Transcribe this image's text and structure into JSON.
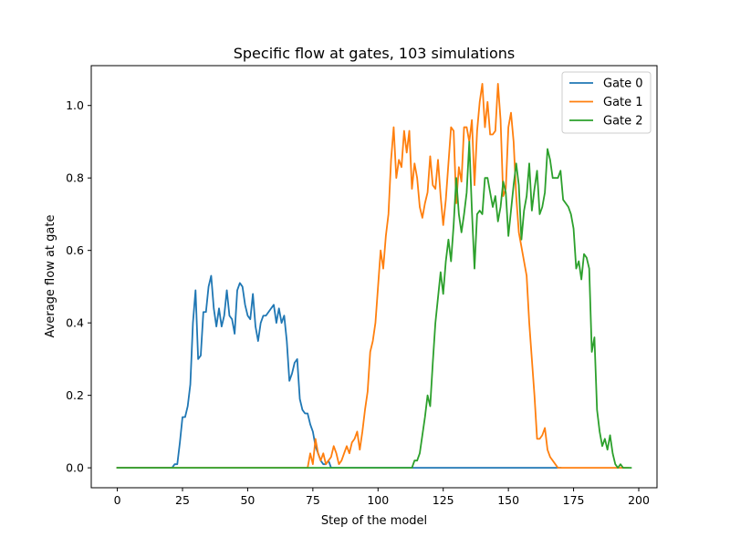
{
  "chart_data": {
    "type": "line",
    "title": "Specific flow at gates, 103 simulations",
    "xlabel": "Step of the model",
    "ylabel": "Average flow at gate",
    "xlim": [
      -10,
      207
    ],
    "ylim": [
      -0.055,
      1.11
    ],
    "xticks": [
      0,
      25,
      50,
      75,
      100,
      125,
      150,
      175,
      200
    ],
    "yticks": [
      0.0,
      0.2,
      0.4,
      0.6,
      0.8,
      1.0
    ],
    "ytick_labels": [
      "0.0",
      "0.2",
      "0.4",
      "0.6",
      "0.8",
      "1.0"
    ],
    "grid": false,
    "legend_position": "top-right",
    "series": [
      {
        "name": "Gate 0",
        "color": "#1f77b4",
        "x": [
          0,
          21,
          22,
          23,
          24,
          25,
          26,
          27,
          28,
          29,
          30,
          31,
          32,
          33,
          34,
          35,
          36,
          37,
          38,
          39,
          40,
          41,
          42,
          43,
          44,
          45,
          46,
          47,
          48,
          49,
          50,
          51,
          52,
          53,
          54,
          55,
          56,
          57,
          58,
          59,
          60,
          61,
          62,
          63,
          64,
          65,
          66,
          67,
          68,
          69,
          70,
          71,
          72,
          73,
          74,
          75,
          76,
          77,
          78,
          79,
          80,
          81,
          82,
          170
        ],
        "values": [
          0,
          0,
          0.01,
          0.01,
          0.07,
          0.14,
          0.14,
          0.17,
          0.23,
          0.4,
          0.49,
          0.3,
          0.31,
          0.43,
          0.43,
          0.5,
          0.53,
          0.44,
          0.39,
          0.44,
          0.39,
          0.42,
          0.49,
          0.42,
          0.41,
          0.37,
          0.49,
          0.51,
          0.5,
          0.45,
          0.42,
          0.41,
          0.48,
          0.39,
          0.35,
          0.4,
          0.42,
          0.42,
          0.43,
          0.44,
          0.45,
          0.4,
          0.44,
          0.4,
          0.42,
          0.35,
          0.24,
          0.26,
          0.29,
          0.3,
          0.19,
          0.16,
          0.15,
          0.15,
          0.12,
          0.1,
          0.06,
          0.04,
          0.02,
          0.01,
          0.01,
          0.02,
          0,
          0
        ]
      },
      {
        "name": "Gate 1",
        "color": "#ff7f0e",
        "x": [
          0,
          73,
          74,
          75,
          76,
          77,
          78,
          79,
          80,
          81,
          82,
          83,
          84,
          85,
          86,
          87,
          88,
          89,
          90,
          91,
          92,
          93,
          94,
          95,
          96,
          97,
          98,
          99,
          100,
          101,
          102,
          103,
          104,
          105,
          106,
          107,
          108,
          109,
          110,
          111,
          112,
          113,
          114,
          115,
          116,
          117,
          118,
          119,
          120,
          121,
          122,
          123,
          124,
          125,
          126,
          127,
          128,
          129,
          130,
          131,
          132,
          133,
          134,
          135,
          136,
          137,
          138,
          139,
          140,
          141,
          142,
          143,
          144,
          145,
          146,
          147,
          148,
          149,
          150,
          151,
          152,
          153,
          154,
          155,
          156,
          157,
          158,
          159,
          160,
          161,
          162,
          163,
          164,
          165,
          166,
          167,
          168,
          169,
          170,
          196
        ],
        "values": [
          0,
          0,
          0.04,
          0.01,
          0.08,
          0.04,
          0.02,
          0.04,
          0.01,
          0.02,
          0.03,
          0.06,
          0.04,
          0.01,
          0.02,
          0.04,
          0.06,
          0.04,
          0.07,
          0.08,
          0.1,
          0.05,
          0.1,
          0.16,
          0.21,
          0.32,
          0.35,
          0.4,
          0.5,
          0.6,
          0.55,
          0.64,
          0.7,
          0.85,
          0.94,
          0.8,
          0.85,
          0.83,
          0.93,
          0.87,
          0.93,
          0.77,
          0.84,
          0.8,
          0.72,
          0.69,
          0.73,
          0.76,
          0.86,
          0.78,
          0.77,
          0.85,
          0.75,
          0.67,
          0.74,
          0.84,
          0.94,
          0.93,
          0.73,
          0.83,
          0.79,
          0.94,
          0.94,
          0.9,
          0.96,
          0.78,
          0.93,
          1.01,
          1.06,
          0.94,
          1.01,
          0.92,
          0.92,
          0.93,
          1.06,
          0.96,
          0.75,
          0.77,
          0.94,
          0.98,
          0.9,
          0.75,
          0.65,
          0.61,
          0.57,
          0.53,
          0.4,
          0.3,
          0.2,
          0.08,
          0.08,
          0.09,
          0.11,
          0.05,
          0.03,
          0.02,
          0.01,
          0,
          0,
          0
        ]
      },
      {
        "name": "Gate 2",
        "color": "#2ca02c",
        "x": [
          0,
          113,
          114,
          115,
          116,
          117,
          118,
          119,
          120,
          121,
          122,
          123,
          124,
          125,
          126,
          127,
          128,
          129,
          130,
          131,
          132,
          133,
          134,
          135,
          136,
          137,
          138,
          139,
          140,
          141,
          142,
          143,
          144,
          145,
          146,
          147,
          148,
          149,
          150,
          151,
          152,
          153,
          154,
          155,
          156,
          157,
          158,
          159,
          160,
          161,
          162,
          163,
          164,
          165,
          166,
          167,
          168,
          169,
          170,
          171,
          172,
          173,
          174,
          175,
          176,
          177,
          178,
          179,
          180,
          181,
          182,
          183,
          184,
          185,
          186,
          187,
          188,
          189,
          190,
          191,
          192,
          193,
          194,
          195,
          196,
          197
        ],
        "values": [
          0,
          0,
          0.02,
          0.02,
          0.04,
          0.09,
          0.14,
          0.2,
          0.17,
          0.29,
          0.4,
          0.47,
          0.54,
          0.48,
          0.57,
          0.63,
          0.57,
          0.67,
          0.8,
          0.7,
          0.65,
          0.7,
          0.76,
          0.9,
          0.71,
          0.55,
          0.7,
          0.71,
          0.7,
          0.8,
          0.8,
          0.76,
          0.72,
          0.75,
          0.68,
          0.72,
          0.79,
          0.76,
          0.64,
          0.71,
          0.78,
          0.84,
          0.78,
          0.63,
          0.71,
          0.75,
          0.84,
          0.71,
          0.77,
          0.82,
          0.7,
          0.72,
          0.76,
          0.88,
          0.85,
          0.8,
          0.8,
          0.8,
          0.82,
          0.74,
          0.73,
          0.72,
          0.7,
          0.66,
          0.55,
          0.57,
          0.52,
          0.59,
          0.58,
          0.55,
          0.32,
          0.36,
          0.16,
          0.1,
          0.06,
          0.08,
          0.05,
          0.09,
          0.04,
          0.01,
          0,
          0.01,
          0,
          0,
          0,
          0
        ]
      }
    ]
  }
}
